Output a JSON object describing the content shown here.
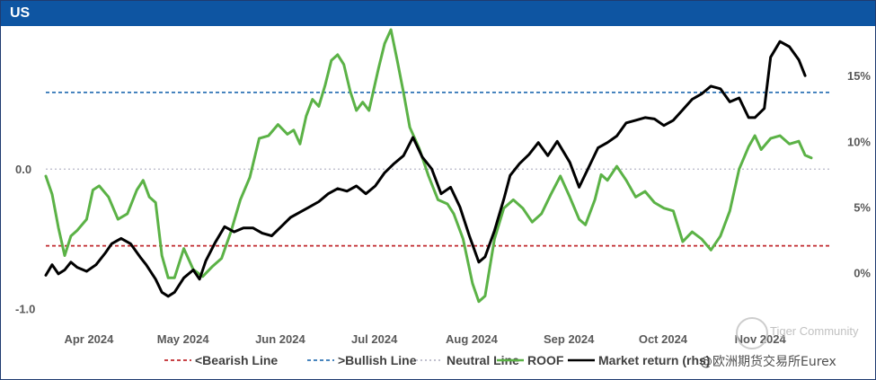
{
  "header": {
    "title": "US"
  },
  "watermark": {
    "line1": "Tiger Community",
    "line2": "@欧洲期货交易所Eurex"
  },
  "colors": {
    "header": "#0e55a2",
    "roof": "#5bb246",
    "market": "#000000",
    "bearish": "#c0282d",
    "bullish": "#2e74b5",
    "neutral": "#b7b7c7"
  },
  "chart_data": {
    "type": "line",
    "title": "US",
    "x_range": [
      "2024-03-20",
      "2024-11-25"
    ],
    "left_axis": {
      "ticks": [
        {
          "value": 0.0,
          "label": "0.0"
        },
        {
          "value": -1.0,
          "label": "-1.0"
        }
      ],
      "range": [
        -1.1,
        1.0
      ]
    },
    "right_axis": {
      "ticks": [
        {
          "value": 15,
          "label": "15%"
        },
        {
          "value": 10,
          "label": "10%"
        },
        {
          "value": 5,
          "label": "5%"
        },
        {
          "value": 0,
          "label": "0%"
        }
      ],
      "range": [
        -3.8,
        18.5
      ]
    },
    "x_ticks": [
      {
        "date": "2024-04-01",
        "label": "Apr 2024"
      },
      {
        "date": "2024-05-01",
        "label": "May 2024"
      },
      {
        "date": "2024-06-01",
        "label": "Jun 2024"
      },
      {
        "date": "2024-07-01",
        "label": "Jul 2024"
      },
      {
        "date": "2024-08-01",
        "label": "Aug 2024"
      },
      {
        "date": "2024-09-01",
        "label": "Sep 2024"
      },
      {
        "date": "2024-10-01",
        "label": "Oct 2024"
      },
      {
        "date": "2024-11-01",
        "label": "Nov 2024"
      }
    ],
    "reference_lines": [
      {
        "name": "<Bearish Line",
        "value": -0.55,
        "axis": "left",
        "style": "dashed",
        "color": "#c0282d"
      },
      {
        "name": ">Bullish Line",
        "value": 0.55,
        "axis": "left",
        "style": "dashed",
        "color": "#2e74b5"
      },
      {
        "name": "Neutral Line",
        "value": 0.0,
        "axis": "left",
        "style": "dotted",
        "color": "#b7b7c7"
      }
    ],
    "series": [
      {
        "name": "ROOF",
        "axis": "left",
        "color": "#5bb246",
        "points": [
          [
            "2024-03-20",
            -0.05
          ],
          [
            "2024-03-22",
            -0.18
          ],
          [
            "2024-03-24",
            -0.42
          ],
          [
            "2024-03-26",
            -0.62
          ],
          [
            "2024-03-28",
            -0.48
          ],
          [
            "2024-03-30",
            -0.44
          ],
          [
            "2024-04-02",
            -0.36
          ],
          [
            "2024-04-04",
            -0.15
          ],
          [
            "2024-04-06",
            -0.12
          ],
          [
            "2024-04-09",
            -0.2
          ],
          [
            "2024-04-12",
            -0.36
          ],
          [
            "2024-04-15",
            -0.32
          ],
          [
            "2024-04-18",
            -0.15
          ],
          [
            "2024-04-20",
            -0.08
          ],
          [
            "2024-04-22",
            -0.2
          ],
          [
            "2024-04-24",
            -0.24
          ],
          [
            "2024-04-26",
            -0.62
          ],
          [
            "2024-04-28",
            -0.78
          ],
          [
            "2024-04-30",
            -0.78
          ],
          [
            "2024-05-03",
            -0.57
          ],
          [
            "2024-05-06",
            -0.72
          ],
          [
            "2024-05-09",
            -0.77
          ],
          [
            "2024-05-12",
            -0.7
          ],
          [
            "2024-05-15",
            -0.64
          ],
          [
            "2024-05-18",
            -0.45
          ],
          [
            "2024-05-21",
            -0.22
          ],
          [
            "2024-05-24",
            -0.06
          ],
          [
            "2024-05-27",
            0.22
          ],
          [
            "2024-05-30",
            0.24
          ],
          [
            "2024-06-02",
            0.32
          ],
          [
            "2024-06-05",
            0.25
          ],
          [
            "2024-06-07",
            0.28
          ],
          [
            "2024-06-09",
            0.18
          ],
          [
            "2024-06-11",
            0.38
          ],
          [
            "2024-06-13",
            0.5
          ],
          [
            "2024-06-15",
            0.45
          ],
          [
            "2024-06-17",
            0.6
          ],
          [
            "2024-06-19",
            0.78
          ],
          [
            "2024-06-21",
            0.82
          ],
          [
            "2024-06-23",
            0.75
          ],
          [
            "2024-06-25",
            0.56
          ],
          [
            "2024-06-27",
            0.42
          ],
          [
            "2024-06-29",
            0.48
          ],
          [
            "2024-07-01",
            0.42
          ],
          [
            "2024-07-04",
            0.72
          ],
          [
            "2024-07-06",
            0.9
          ],
          [
            "2024-07-08",
            1.0
          ],
          [
            "2024-07-10",
            0.78
          ],
          [
            "2024-07-12",
            0.55
          ],
          [
            "2024-07-14",
            0.3
          ],
          [
            "2024-07-17",
            0.15
          ],
          [
            "2024-07-20",
            -0.05
          ],
          [
            "2024-07-23",
            -0.22
          ],
          [
            "2024-07-26",
            -0.25
          ],
          [
            "2024-07-28",
            -0.32
          ],
          [
            "2024-07-31",
            -0.5
          ],
          [
            "2024-08-03",
            -0.82
          ],
          [
            "2024-08-05",
            -0.95
          ],
          [
            "2024-08-07",
            -0.91
          ],
          [
            "2024-08-10",
            -0.5
          ],
          [
            "2024-08-13",
            -0.28
          ],
          [
            "2024-08-16",
            -0.22
          ],
          [
            "2024-08-19",
            -0.28
          ],
          [
            "2024-08-22",
            -0.38
          ],
          [
            "2024-08-25",
            -0.32
          ],
          [
            "2024-08-28",
            -0.18
          ],
          [
            "2024-08-31",
            -0.05
          ],
          [
            "2024-09-03",
            -0.2
          ],
          [
            "2024-09-06",
            -0.36
          ],
          [
            "2024-09-08",
            -0.4
          ],
          [
            "2024-09-11",
            -0.22
          ],
          [
            "2024-09-13",
            -0.04
          ],
          [
            "2024-09-15",
            -0.08
          ],
          [
            "2024-09-18",
            0.02
          ],
          [
            "2024-09-21",
            -0.08
          ],
          [
            "2024-09-24",
            -0.2
          ],
          [
            "2024-09-27",
            -0.16
          ],
          [
            "2024-09-30",
            -0.24
          ],
          [
            "2024-10-03",
            -0.28
          ],
          [
            "2024-10-06",
            -0.3
          ],
          [
            "2024-10-09",
            -0.52
          ],
          [
            "2024-10-12",
            -0.45
          ],
          [
            "2024-10-15",
            -0.5
          ],
          [
            "2024-10-18",
            -0.58
          ],
          [
            "2024-10-21",
            -0.48
          ],
          [
            "2024-10-24",
            -0.3
          ],
          [
            "2024-10-27",
            0.0
          ],
          [
            "2024-10-30",
            0.16
          ],
          [
            "2024-11-01",
            0.24
          ],
          [
            "2024-11-03",
            0.14
          ],
          [
            "2024-11-06",
            0.22
          ],
          [
            "2024-11-09",
            0.24
          ],
          [
            "2024-11-12",
            0.18
          ],
          [
            "2024-11-15",
            0.2
          ],
          [
            "2024-11-17",
            0.1
          ],
          [
            "2024-11-19",
            0.08
          ]
        ]
      },
      {
        "name": "Market return (rhs)",
        "axis": "right",
        "color": "#000000",
        "points": [
          [
            "2024-03-20",
            -0.2
          ],
          [
            "2024-03-22",
            0.6
          ],
          [
            "2024-03-24",
            -0.1
          ],
          [
            "2024-03-26",
            0.2
          ],
          [
            "2024-03-28",
            0.8
          ],
          [
            "2024-03-30",
            0.4
          ],
          [
            "2024-04-02",
            0.1
          ],
          [
            "2024-04-05",
            0.6
          ],
          [
            "2024-04-08",
            1.5
          ],
          [
            "2024-04-10",
            2.2
          ],
          [
            "2024-04-13",
            2.6
          ],
          [
            "2024-04-16",
            2.2
          ],
          [
            "2024-04-19",
            1.2
          ],
          [
            "2024-04-21",
            0.6
          ],
          [
            "2024-04-24",
            -0.5
          ],
          [
            "2024-04-26",
            -1.5
          ],
          [
            "2024-04-28",
            -1.8
          ],
          [
            "2024-04-30",
            -1.5
          ],
          [
            "2024-05-03",
            -0.4
          ],
          [
            "2024-05-06",
            0.2
          ],
          [
            "2024-05-08",
            -0.5
          ],
          [
            "2024-05-10",
            0.9
          ],
          [
            "2024-05-13",
            2.3
          ],
          [
            "2024-05-16",
            3.5
          ],
          [
            "2024-05-19",
            3.1
          ],
          [
            "2024-05-22",
            3.4
          ],
          [
            "2024-05-25",
            3.4
          ],
          [
            "2024-05-28",
            3.0
          ],
          [
            "2024-05-31",
            2.8
          ],
          [
            "2024-06-03",
            3.5
          ],
          [
            "2024-06-06",
            4.2
          ],
          [
            "2024-06-09",
            4.6
          ],
          [
            "2024-06-12",
            5.0
          ],
          [
            "2024-06-15",
            5.4
          ],
          [
            "2024-06-18",
            6.0
          ],
          [
            "2024-06-21",
            6.4
          ],
          [
            "2024-06-24",
            6.2
          ],
          [
            "2024-06-27",
            6.6
          ],
          [
            "2024-06-30",
            6.0
          ],
          [
            "2024-07-03",
            6.6
          ],
          [
            "2024-07-06",
            7.6
          ],
          [
            "2024-07-09",
            8.3
          ],
          [
            "2024-07-12",
            8.9
          ],
          [
            "2024-07-15",
            10.3
          ],
          [
            "2024-07-18",
            8.8
          ],
          [
            "2024-07-21",
            7.9
          ],
          [
            "2024-07-24",
            6.0
          ],
          [
            "2024-07-27",
            6.5
          ],
          [
            "2024-07-30",
            5.0
          ],
          [
            "2024-08-02",
            2.8
          ],
          [
            "2024-08-05",
            0.8
          ],
          [
            "2024-08-07",
            1.2
          ],
          [
            "2024-08-10",
            3.2
          ],
          [
            "2024-08-13",
            5.6
          ],
          [
            "2024-08-15",
            7.4
          ],
          [
            "2024-08-18",
            8.3
          ],
          [
            "2024-08-21",
            9.0
          ],
          [
            "2024-08-24",
            9.9
          ],
          [
            "2024-08-27",
            8.9
          ],
          [
            "2024-08-30",
            10.0
          ],
          [
            "2024-09-03",
            8.4
          ],
          [
            "2024-09-06",
            6.5
          ],
          [
            "2024-09-09",
            8.0
          ],
          [
            "2024-09-12",
            9.5
          ],
          [
            "2024-09-15",
            9.9
          ],
          [
            "2024-09-18",
            10.4
          ],
          [
            "2024-09-21",
            11.4
          ],
          [
            "2024-09-24",
            11.6
          ],
          [
            "2024-09-27",
            11.8
          ],
          [
            "2024-09-30",
            11.7
          ],
          [
            "2024-10-03",
            11.2
          ],
          [
            "2024-10-06",
            11.6
          ],
          [
            "2024-10-09",
            12.4
          ],
          [
            "2024-10-12",
            13.2
          ],
          [
            "2024-10-15",
            13.6
          ],
          [
            "2024-10-18",
            14.2
          ],
          [
            "2024-10-21",
            14.0
          ],
          [
            "2024-10-24",
            13.0
          ],
          [
            "2024-10-27",
            13.3
          ],
          [
            "2024-10-30",
            11.8
          ],
          [
            "2024-11-01",
            11.8
          ],
          [
            "2024-11-04",
            12.5
          ],
          [
            "2024-11-06",
            16.4
          ],
          [
            "2024-11-09",
            17.6
          ],
          [
            "2024-11-12",
            17.2
          ],
          [
            "2024-11-15",
            16.2
          ],
          [
            "2024-11-17",
            15.0
          ]
        ]
      }
    ],
    "legend": {
      "placement": "bottom",
      "entries": [
        {
          "label": "<Bearish Line",
          "color": "#c0282d",
          "style": "dashed"
        },
        {
          "label": ">Bullish Line",
          "color": "#2e74b5",
          "style": "dashed"
        },
        {
          "label": "Neutral Line",
          "color": "#b7b7c7",
          "style": "dotted"
        },
        {
          "label": "ROOF",
          "color": "#5bb246",
          "style": "solid"
        },
        {
          "label": "Market return (rhs)",
          "color": "#000000",
          "style": "solid"
        }
      ]
    }
  }
}
